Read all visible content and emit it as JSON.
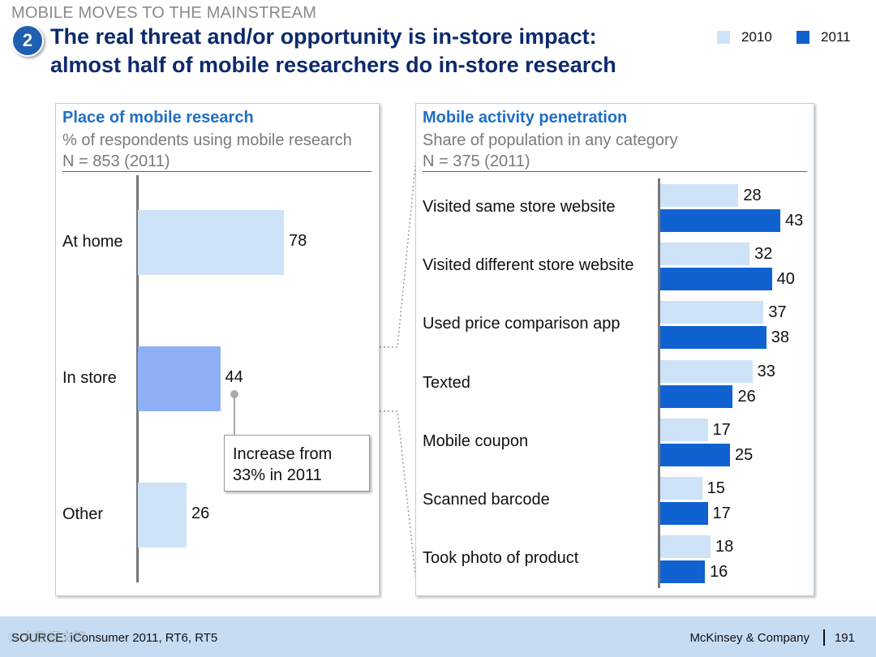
{
  "header": {
    "kicker": "MOBILE MOVES TO THE MAINSTREAM",
    "badge": "2",
    "title_line1": "The real threat and/or opportunity is in-store impact:",
    "title_line2": "almost half of mobile researchers do in-store research"
  },
  "legend": [
    {
      "label": "2010",
      "color": "#cfe3f8"
    },
    {
      "label": "2011",
      "color": "#0f62cf"
    }
  ],
  "left_panel": {
    "title": "Place of mobile research",
    "subtitle": "% of respondents using mobile research",
    "n": "N  = 853 (2011)",
    "callout_line1": "Increase from",
    "callout_line2": "33% in 2011"
  },
  "right_panel": {
    "title": "Mobile activity penetration",
    "subtitle": "Share of population in any category",
    "n": "N  = 375 (2011)"
  },
  "chart_data": [
    {
      "type": "bar",
      "orientation": "horizontal",
      "title": "Place of mobile research",
      "categories": [
        "At home",
        "In store",
        "Other"
      ],
      "values": [
        78,
        44,
        26
      ],
      "colors": [
        "#cfe3f8",
        "#8fb0f4",
        "#cfe3f8"
      ],
      "xlim": [
        0,
        100
      ]
    },
    {
      "type": "bar",
      "orientation": "horizontal",
      "title": "Mobile activity penetration",
      "categories": [
        "Visited same store website",
        "Visited different store website",
        "Used price comparison app",
        "Texted",
        "Mobile coupon",
        "Scanned barcode",
        "Took photo of product"
      ],
      "series": [
        {
          "name": "2010",
          "values": [
            28,
            32,
            37,
            33,
            17,
            15,
            18
          ]
        },
        {
          "name": "2011",
          "values": [
            43,
            40,
            38,
            26,
            25,
            17,
            16
          ]
        }
      ],
      "xlim": [
        0,
        50
      ]
    }
  ],
  "footer": {
    "source": "SOURCE: iConsumer 2011, RT6, RT5",
    "company": "McKinsey & Company",
    "page": "191",
    "watermark": "© 大数据文摘"
  }
}
